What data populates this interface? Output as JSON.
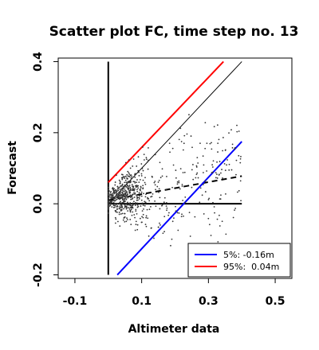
{
  "chart_data": {
    "type": "scatter",
    "title": "Scatter plot FC, time step no. 13",
    "xlabel": "Altimeter data",
    "ylabel": "Forecast",
    "xlim": [
      -0.15,
      0.55
    ],
    "ylim": [
      -0.21,
      0.41
    ],
    "x_ticks": [
      -0.1,
      0.1,
      0.3,
      0.5
    ],
    "x_tick_labels": [
      "-0.1",
      "0.1",
      "0.3",
      "0.5"
    ],
    "y_ticks": [
      -0.2,
      0.0,
      0.2,
      0.4
    ],
    "y_tick_labels": [
      "-0.2",
      "0.0",
      "0.2",
      "0.4"
    ],
    "grid": false,
    "legend_position": "bottom-right",
    "legend": [
      {
        "label": "5%: -0.16m",
        "color": "#0000ff"
      },
      {
        "label": "95%:  0.04m",
        "color": "#ff0000"
      }
    ],
    "reference_lines": [
      {
        "name": "vertical-zero",
        "x": [
          0.0,
          0.0
        ],
        "y": [
          -0.2,
          0.4
        ],
        "color": "#000000",
        "style": "solid",
        "width": 2
      },
      {
        "name": "horizontal-zero",
        "x": [
          0.0,
          0.4
        ],
        "y": [
          0.0,
          0.0
        ],
        "color": "#000000",
        "style": "solid",
        "width": 2
      },
      {
        "name": "identity",
        "x": [
          0.0,
          0.4
        ],
        "y": [
          0.0,
          0.4
        ],
        "color": "#000000",
        "style": "solid",
        "width": 1
      },
      {
        "name": "regression",
        "x": [
          0.0,
          0.4
        ],
        "y": [
          0.01,
          0.078
        ],
        "color": "#000000",
        "style": "dashed",
        "width": 2
      },
      {
        "name": "upper-95",
        "x": [
          0.0,
          0.345
        ],
        "y": [
          0.06,
          0.4
        ],
        "color": "#ff0000",
        "style": "solid",
        "width": 2
      },
      {
        "name": "lower-5",
        "x": [
          0.027,
          0.4
        ],
        "y": [
          -0.2,
          0.175
        ],
        "color": "#0000ff",
        "style": "solid",
        "width": 2
      }
    ],
    "points": {
      "n": 700,
      "x_range": [
        0.0,
        0.4
      ],
      "x_center": 0.05,
      "y_center": 0.01,
      "color": "#333333"
    }
  }
}
